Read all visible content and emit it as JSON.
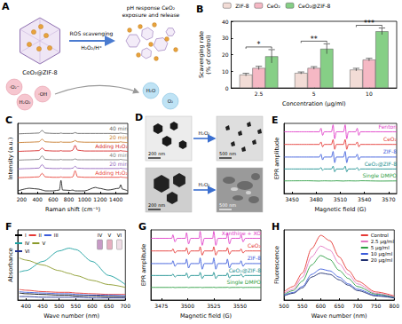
{
  "chart_data": [
    {
      "type": "bar",
      "title": "B",
      "categories": [
        "2.5",
        "5",
        "10"
      ],
      "x_label": "Concentration (μg/ml)",
      "y_label": "Scavenging rate\n(% of control)",
      "ylim": [
        0,
        40
      ],
      "yticks": [
        0,
        10,
        20,
        30,
        40
      ],
      "grid": false,
      "legend": "top",
      "series": [
        {
          "name": "ZIF-8",
          "color": "#f2dcd6",
          "values": [
            8,
            9,
            11
          ],
          "errors": [
            0.8,
            0.6,
            0.8
          ]
        },
        {
          "name": "CeO₂",
          "color": "#f5b8c4",
          "values": [
            12,
            12,
            17
          ],
          "errors": [
            1,
            0.8,
            0.8
          ]
        },
        {
          "name": "CeO₂@ZIF-8",
          "color": "#86cf86",
          "values": [
            19,
            23.5,
            34
          ],
          "errors": [
            4,
            3,
            2
          ]
        }
      ],
      "annotations": [
        {
          "category": "2.5",
          "text": "*"
        },
        {
          "category": "5",
          "text": "**"
        },
        {
          "category": "10",
          "text": "***"
        }
      ]
    },
    {
      "type": "line",
      "title": "C",
      "x_label": "Raman shift (cm⁻¹)",
      "y_label": "Intensity (a.u.)",
      "xlim": [
        150,
        1550
      ],
      "xticks": [
        200,
        400,
        600,
        800,
        1000,
        1200,
        1400
      ],
      "ylim": [
        0,
        8
      ],
      "tick_labels": "x",
      "grid": false,
      "x": [
        150,
        300,
        420,
        460,
        500,
        600,
        680,
        700,
        720,
        820,
        850,
        880,
        910,
        1000,
        1140,
        1180,
        1300,
        1440,
        1460,
        1480,
        1550
      ],
      "series": [
        {
          "name": "40 min",
          "color": "#666666",
          "values": [
            6.8,
            6.85,
            6.9,
            7.2,
            6.9,
            6.85,
            6.85,
            6.9,
            6.85,
            6.85,
            6.85,
            6.95,
            6.85,
            6.85,
            6.85,
            6.85,
            6.85,
            6.85,
            6.9,
            6.85,
            6.8
          ]
        },
        {
          "name": "20 min",
          "color": "#c77c2e",
          "values": [
            5.8,
            5.85,
            5.9,
            6.2,
            5.9,
            5.85,
            5.85,
            5.9,
            5.85,
            5.85,
            5.9,
            6.05,
            5.9,
            5.85,
            5.85,
            5.85,
            5.85,
            5.85,
            5.9,
            5.85,
            5.8
          ]
        },
        {
          "name": "Adding H₂O₂",
          "color": "#d62728",
          "values": [
            4.8,
            4.85,
            4.9,
            5.2,
            4.9,
            4.85,
            4.85,
            4.9,
            4.85,
            4.85,
            4.95,
            5.5,
            4.95,
            4.85,
            4.85,
            4.85,
            4.85,
            4.85,
            4.9,
            4.85,
            4.8
          ]
        },
        {
          "name": "40 min",
          "color": "#7f7f7f",
          "values": [
            3.8,
            3.85,
            3.9,
            4.3,
            3.9,
            3.85,
            3.85,
            3.9,
            3.85,
            3.85,
            3.85,
            3.95,
            3.85,
            3.85,
            3.85,
            3.85,
            3.85,
            3.85,
            3.9,
            3.85,
            3.8
          ]
        },
        {
          "name": "20 min",
          "color": "#9467bd",
          "values": [
            2.8,
            2.85,
            2.9,
            3.3,
            2.9,
            2.85,
            2.85,
            2.9,
            2.85,
            2.85,
            2.9,
            3.1,
            2.9,
            2.85,
            2.85,
            2.85,
            2.85,
            2.85,
            2.9,
            2.85,
            2.8
          ]
        },
        {
          "name": "Adding H₂O₂",
          "color": "#e8443a",
          "values": [
            1.8,
            1.85,
            1.9,
            2.3,
            1.9,
            1.85,
            1.85,
            1.9,
            1.85,
            1.85,
            1.9,
            2.6,
            1.9,
            1.85,
            1.85,
            1.85,
            1.85,
            1.85,
            1.9,
            1.85,
            1.8
          ]
        },
        {
          "color": "#222222",
          "values": [
            0.3,
            0.6,
            0.5,
            0.4,
            0.3,
            0.3,
            0.4,
            1.5,
            0.4,
            0.35,
            0.4,
            0.3,
            0.3,
            0.3,
            0.7,
            0.6,
            0.4,
            0.6,
            1.0,
            0.5,
            0.3
          ]
        }
      ]
    },
    {
      "type": "line",
      "title": "E",
      "x_label": "Magnetic field (G)",
      "y_label": "EPR amplitude",
      "xlim": [
        3440,
        3580
      ],
      "xticks": [
        3450,
        3480,
        3510,
        3540,
        3570
      ],
      "ylim": [
        0,
        10
      ],
      "tick_labels": "x",
      "grid": false,
      "x": [
        3440,
        3470,
        3484,
        3486,
        3488,
        3490,
        3499,
        3501,
        3503,
        3505,
        3514,
        3516,
        3518,
        3520,
        3529,
        3531,
        3533,
        3535,
        3560,
        3580
      ],
      "series": [
        {
          "name": "Fenton",
          "color": "#e040c8",
          "values": [
            8.8,
            8.8,
            8.8,
            9.3,
            8.3,
            8.8,
            8.8,
            9.8,
            7.8,
            8.8,
            8.8,
            9.8,
            7.8,
            8.8,
            8.8,
            9.3,
            8.3,
            8.8,
            8.8,
            8.8
          ]
        },
        {
          "name": "CeO₂",
          "color": "#e53935",
          "values": [
            7,
            7,
            7,
            7.35,
            6.65,
            7,
            7,
            7.7,
            6.3,
            7,
            7,
            7.7,
            6.3,
            7,
            7,
            7.35,
            6.65,
            7,
            7,
            7
          ]
        },
        {
          "name": "ZIF-8",
          "color": "#3b5bdb",
          "values": [
            5.2,
            5.2,
            5.2,
            5.6,
            4.8,
            5.2,
            5.2,
            6,
            4.4,
            5.2,
            5.2,
            6,
            4.4,
            5.2,
            5.2,
            5.6,
            4.8,
            5.2,
            5.2,
            5.2
          ]
        },
        {
          "name": "CeO₂@ZIF-8",
          "color": "#1a8f8f",
          "values": [
            3.5,
            3.5,
            3.5,
            3.7,
            3.3,
            3.5,
            3.5,
            3.9,
            3.1,
            3.5,
            3.5,
            3.9,
            3.1,
            3.5,
            3.5,
            3.7,
            3.3,
            3.5,
            3.5,
            3.5
          ]
        },
        {
          "name": "Single DMPO",
          "color": "#2e9e44",
          "values": [
            1.8,
            1.82,
            1.78,
            1.8,
            1.8,
            1.81,
            1.79,
            1.8,
            1.8,
            1.82,
            1.78,
            1.8,
            1.8,
            1.81,
            1.79,
            1.8,
            1.8,
            1.82,
            1.78,
            1.8
          ]
        }
      ]
    },
    {
      "type": "line",
      "title": "F",
      "x_label": "Wave number (nm)",
      "y_label": "Absorbance",
      "xlim": [
        375,
        700
      ],
      "xticks": [
        400,
        450,
        500,
        550,
        600,
        650,
        700
      ],
      "ylim": [
        0,
        1
      ],
      "tick_labels": "x",
      "grid": false,
      "legend": "top-left",
      "annotations": [
        "IV",
        "V",
        "VI"
      ],
      "x": [
        380,
        400,
        450,
        500,
        530,
        550,
        600,
        650,
        700
      ],
      "series": [
        {
          "name": "I",
          "color": "#000000",
          "values": [
            0.1,
            0.09,
            0.08,
            0.07,
            0.07,
            0.06,
            0.06,
            0.05,
            0.05
          ]
        },
        {
          "name": "II",
          "color": "#e53935",
          "values": [
            0.15,
            0.14,
            0.12,
            0.11,
            0.11,
            0.1,
            0.09,
            0.08,
            0.08
          ]
        },
        {
          "name": "III",
          "color": "#3b5bdb",
          "values": [
            0.12,
            0.11,
            0.1,
            0.09,
            0.09,
            0.08,
            0.07,
            0.07,
            0.06
          ]
        },
        {
          "name": "IV",
          "color": "#1a9f9f",
          "values": [
            0.4,
            0.42,
            0.55,
            0.7,
            0.74,
            0.72,
            0.55,
            0.35,
            0.22
          ]
        },
        {
          "name": "V",
          "color": "#8a9a2a",
          "values": [
            0.6,
            0.57,
            0.5,
            0.42,
            0.38,
            0.35,
            0.28,
            0.22,
            0.18
          ]
        },
        {
          "name": "VI",
          "color": "#1f2f8f",
          "values": [
            0.05,
            0.05,
            0.04,
            0.04,
            0.04,
            0.04,
            0.03,
            0.03,
            0.03
          ]
        }
      ]
    },
    {
      "type": "line",
      "title": "G",
      "x_label": "Magnetic field (G)",
      "y_label": "EPR amplitude",
      "xlim": [
        3465,
        3570
      ],
      "xticks": [
        3475,
        3500,
        3525,
        3550
      ],
      "ylim": [
        0,
        10
      ],
      "tick_labels": "x",
      "grid": false,
      "x": [
        3465,
        3485,
        3486,
        3488,
        3490,
        3498,
        3499,
        3501,
        3503,
        3511,
        3512,
        3514,
        3516,
        3524,
        3525,
        3527,
        3529,
        3537,
        3538,
        3540,
        3542,
        3550,
        3551,
        3553,
        3555,
        3570
      ],
      "series": [
        {
          "name": "Xanthine + XO",
          "color": "#e040c8",
          "values": [
            8.8,
            8.8,
            9.3,
            8.3,
            8.8,
            8.8,
            9.6,
            8,
            8.8,
            8.8,
            9.8,
            7.8,
            8.8,
            8.8,
            9.8,
            7.8,
            8.8,
            8.8,
            9.6,
            8,
            8.8,
            8.8,
            9.3,
            8.3,
            8.8,
            8.8
          ]
        },
        {
          "name": "CeO₂",
          "color": "#e53935",
          "values": [
            7,
            7,
            7.3,
            6.7,
            7,
            7,
            7.48,
            6.52,
            7,
            7,
            7.6,
            6.4,
            7,
            7,
            7.6,
            6.4,
            7,
            7,
            7.48,
            6.52,
            7,
            7,
            7.3,
            6.7,
            7,
            7
          ]
        },
        {
          "name": "ZIF-8",
          "color": "#3b5bdb",
          "values": [
            5.2,
            5.2,
            5.6,
            4.8,
            5.2,
            5.2,
            5.84,
            4.56,
            5.2,
            5.2,
            6,
            4.4,
            5.2,
            5.2,
            6,
            4.4,
            5.2,
            5.2,
            5.84,
            4.56,
            5.2,
            5.2,
            5.6,
            4.8,
            5.2,
            5.2
          ]
        },
        {
          "name": "CeO₂@ZIF-8",
          "color": "#1a8f8f",
          "values": [
            3.5,
            3.5,
            3.72,
            3.28,
            3.5,
            3.5,
            3.86,
            3.14,
            3.5,
            3.5,
            3.95,
            3.05,
            3.5,
            3.5,
            3.95,
            3.05,
            3.5,
            3.5,
            3.86,
            3.14,
            3.5,
            3.5,
            3.72,
            3.28,
            3.5,
            3.5
          ]
        },
        {
          "name": "Single DMPO",
          "color": "#2e9e44",
          "values": [
            1.8,
            1.8,
            1.83,
            1.77,
            1.8,
            1.8,
            1.83,
            1.77,
            1.8,
            1.8,
            1.83,
            1.77,
            1.8,
            1.8,
            1.83,
            1.77,
            1.8,
            1.8,
            1.83,
            1.77,
            1.8,
            1.8,
            1.83,
            1.77,
            1.8,
            1.8
          ]
        }
      ]
    },
    {
      "type": "line",
      "title": "H",
      "x_label": "Wave number (nm)",
      "y_label": "Fluorescence",
      "xlim": [
        500,
        800
      ],
      "xticks": [
        500,
        550,
        600,
        650,
        700,
        750,
        800
      ],
      "ylim": [
        0,
        260
      ],
      "tick_labels": "x",
      "grid": false,
      "legend": "top-right",
      "x": [
        500,
        525,
        550,
        575,
        600,
        625,
        650,
        675,
        700,
        750,
        800
      ],
      "series": [
        {
          "name": "Control",
          "color": "#e53935",
          "values": [
            30,
            50,
            100,
            190,
            240,
            220,
            160,
            110,
            70,
            30,
            15
          ]
        },
        {
          "name": "2.5 μg/ml",
          "color": "#e377c2",
          "values": [
            25,
            40,
            85,
            160,
            200,
            185,
            135,
            95,
            60,
            25,
            12
          ]
        },
        {
          "name": "5 μg/ml",
          "color": "#2e9e44",
          "values": [
            20,
            35,
            70,
            130,
            165,
            150,
            110,
            80,
            50,
            22,
            10
          ]
        },
        {
          "name": "10 μg/ml",
          "color": "#3b5bdb",
          "values": [
            18,
            28,
            50,
            95,
            115,
            108,
            85,
            60,
            40,
            18,
            8
          ]
        },
        {
          "name": "20 μg/ml",
          "color": "#1f2f6f",
          "values": [
            15,
            25,
            45,
            85,
            100,
            95,
            75,
            55,
            35,
            15,
            8
          ]
        }
      ]
    }
  ],
  "panel_A": {
    "title": "A",
    "left_label": "CeO₂@ZIF-8",
    "arrow_top": "ROS scavenging",
    "arrow_bottom": "H₂O₂/H⁺",
    "right_label": [
      "pH response CeO₂",
      "exposure and release"
    ],
    "reactants": [
      "·O₂⁻",
      "H₂O₂",
      "·OH"
    ],
    "products": [
      "H₂O",
      "O₂"
    ]
  },
  "panel_D": {
    "title": "D",
    "treatment": "H₂O₂",
    "scale_bars": [
      "200 nm",
      "500 nm",
      "200 nm",
      "500 nm"
    ]
  }
}
